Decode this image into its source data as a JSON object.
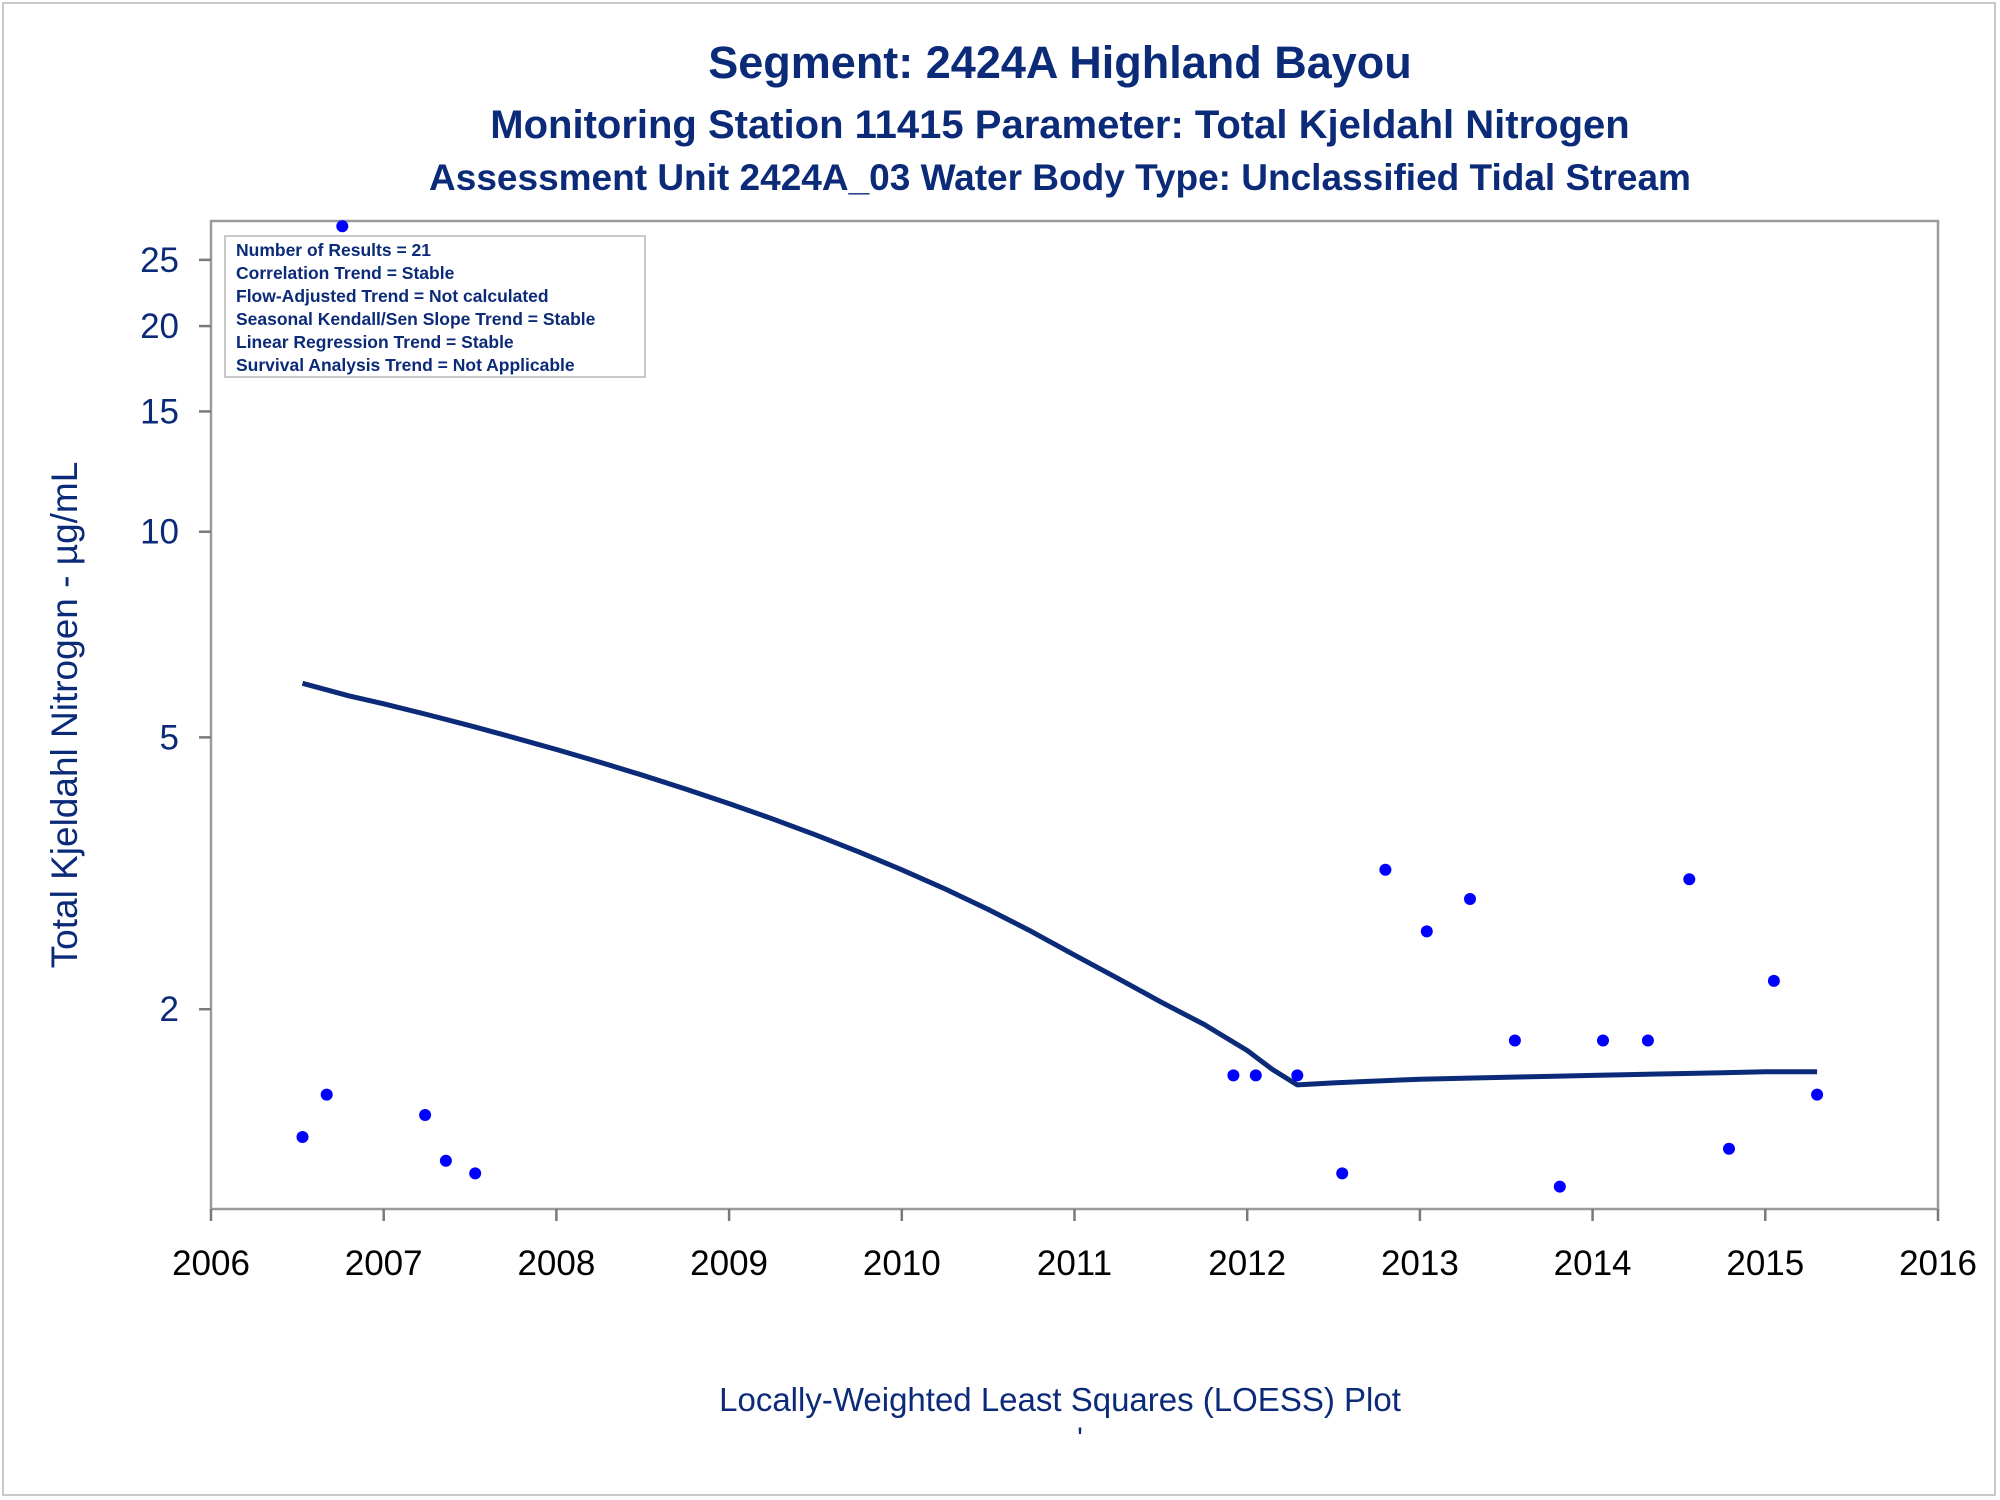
{
  "chart_data": {
    "type": "scatter",
    "title": "Segment: 2424A  Highland Bayou",
    "subtitle": "Monitoring Station 11415 Parameter: Total Kjeldahl Nitrogen",
    "subtitle2": "Assessment Unit 2424A_03   Water Body Type: Unclassified Tidal Stream",
    "xlabel": "Locally-Weighted Least Squares (LOESS) Plot",
    "ylabel": "Total Kjeldahl Nitrogen -  µg/mL",
    "footnote": "'",
    "xlim": [
      2006,
      2016
    ],
    "ylim": [
      1.02,
      28.5
    ],
    "yscale": "log",
    "x_ticks": [
      2006,
      2007,
      2008,
      2009,
      2010,
      2011,
      2012,
      2013,
      2014,
      2015,
      2016
    ],
    "y_ticks": [
      2,
      5,
      10,
      15,
      20,
      25
    ],
    "grid": false,
    "legend_position": "top-left",
    "stats_box": [
      "Number of Results = 21",
      "Correlation Trend = Stable",
      "Flow-Adjusted Trend = Not calculated",
      "Seasonal Kendall/Sen Slope Trend = Stable",
      "Linear Regression Trend = Stable",
      "Survival Analysis Trend = Not Applicable"
    ],
    "colors": {
      "points": "#0000ff",
      "loess": "#0b2a78",
      "text": "#0b2a78"
    },
    "series": [
      {
        "type": "scatter",
        "x": [
          2006.53,
          2006.67,
          2006.76,
          2007.24,
          2007.36,
          2007.53,
          2011.92,
          2012.05,
          2012.29,
          2012.55,
          2012.8,
          2013.04,
          2013.29,
          2013.55,
          2013.81,
          2014.06,
          2014.32,
          2014.56,
          2014.79,
          2015.05,
          2015.3
        ],
        "y": [
          1.3,
          1.5,
          28.0,
          1.4,
          1.2,
          1.15,
          1.6,
          1.6,
          1.6,
          1.15,
          3.2,
          2.6,
          2.9,
          1.8,
          1.1,
          1.8,
          1.8,
          3.1,
          1.25,
          2.2,
          1.5
        ]
      },
      {
        "type": "line",
        "x": [
          2006.53,
          2006.8,
          2007.0,
          2007.25,
          2007.5,
          2007.75,
          2008.0,
          2008.25,
          2008.5,
          2008.75,
          2009.0,
          2009.25,
          2009.5,
          2009.75,
          2010.0,
          2010.25,
          2010.5,
          2010.75,
          2011.0,
          2011.25,
          2011.5,
          2011.75,
          2012.0,
          2012.15,
          2012.29,
          2012.5,
          2012.75,
          2013.0,
          2013.25,
          2013.5,
          2013.75,
          2014.0,
          2014.25,
          2014.5,
          2014.75,
          2015.0,
          2015.3
        ],
        "y": [
          6.0,
          5.75,
          5.6,
          5.4,
          5.2,
          5.0,
          4.8,
          4.6,
          4.4,
          4.2,
          4.0,
          3.8,
          3.6,
          3.4,
          3.2,
          3.0,
          2.8,
          2.6,
          2.4,
          2.22,
          2.05,
          1.9,
          1.74,
          1.63,
          1.55,
          1.56,
          1.57,
          1.58,
          1.585,
          1.59,
          1.595,
          1.6,
          1.605,
          1.61,
          1.615,
          1.62,
          1.62
        ]
      }
    ]
  }
}
